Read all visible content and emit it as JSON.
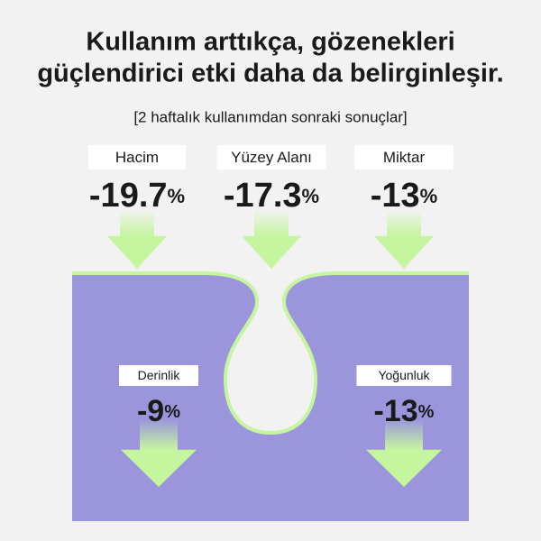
{
  "header": {
    "title_lines": [
      "Kullanım arttıkça, gözenekleri",
      "güçlendirici etki daha da belirginleşir."
    ],
    "subtitle": "[2 haftalık kullanımdan sonraki sonuçlar]"
  },
  "metrics": [
    {
      "label": "Hacim",
      "value": -19.7,
      "unit": "%"
    },
    {
      "label": "Yüzey Alanı",
      "value": -17.3,
      "unit": "%"
    },
    {
      "label": "Miktar",
      "value": -13,
      "unit": "%"
    },
    {
      "label": "Derinlik",
      "value": -9,
      "unit": "%"
    },
    {
      "label": "Yoğunluk",
      "value": -13,
      "unit": "%"
    }
  ]
}
